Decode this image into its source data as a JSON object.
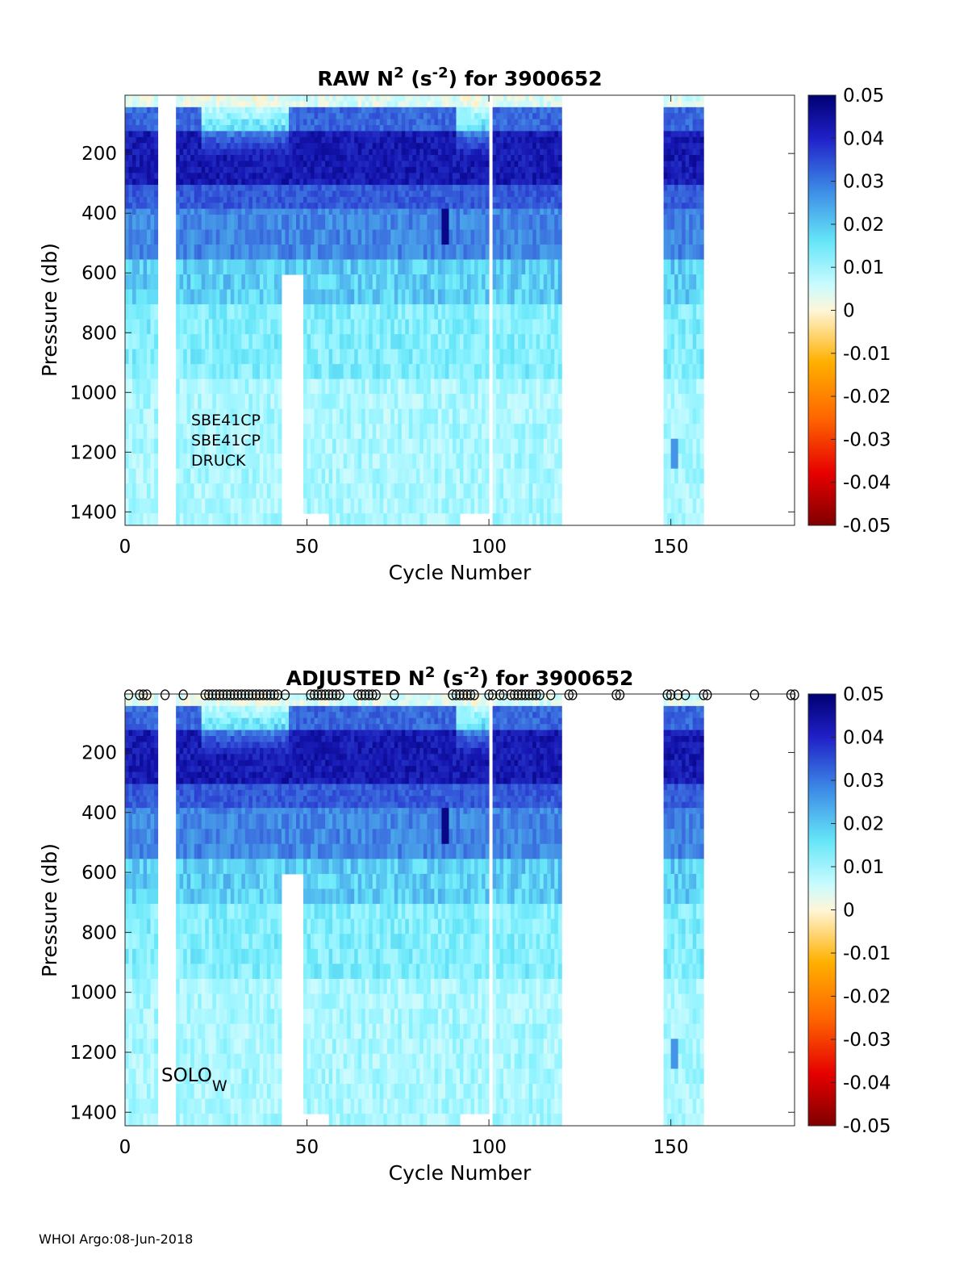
{
  "footer": "WHOI Argo:08-Jun-2018",
  "chart_data": [
    {
      "type": "heatmap",
      "id": "raw",
      "title": {
        "prefix": "RAW N",
        "sup1": "2",
        "mid": " (s",
        "sup2": "-2",
        "suffix": ") for 3900652"
      },
      "xlabel": "Cycle Number",
      "ylabel": "Pressure (db)",
      "xlim": [
        0,
        184
      ],
      "ylim": [
        1445,
        5
      ],
      "xticks": [
        0,
        50,
        100,
        150
      ],
      "yticks": [
        200,
        400,
        600,
        800,
        1000,
        1200,
        1400
      ],
      "colorbar": {
        "min": -0.05,
        "max": 0.05,
        "ticks": [
          "0.05",
          "0.04",
          "0.03",
          "0.02",
          "0.01",
          "0",
          "-0.01",
          "-0.02",
          "-0.03",
          "-0.04",
          "-0.05"
        ]
      },
      "annotations": [
        "SBE41CP",
        "SBE41CP",
        "DRUCK"
      ],
      "data_columns": [
        [
          0,
          9
        ],
        [
          14,
          43
        ],
        [
          43,
          49,
          600
        ],
        [
          49,
          56,
          1400
        ],
        [
          56,
          88
        ],
        [
          88,
          92
        ],
        [
          92,
          100,
          1400
        ],
        [
          101,
          111
        ],
        [
          111,
          120
        ],
        [
          148,
          159
        ]
      ],
      "qc_markers": [],
      "subscript_note": ""
    },
    {
      "type": "heatmap",
      "id": "adjusted",
      "title": {
        "prefix": "ADJUSTED N",
        "sup1": "2",
        "mid": " (s",
        "sup2": "-2",
        "suffix": ") for 3900652"
      },
      "xlabel": "Cycle Number",
      "ylabel": "Pressure (db)",
      "xlim": [
        0,
        184
      ],
      "ylim": [
        1445,
        5
      ],
      "xticks": [
        0,
        50,
        100,
        150
      ],
      "yticks": [
        200,
        400,
        600,
        800,
        1000,
        1200,
        1400
      ],
      "colorbar": {
        "min": -0.05,
        "max": 0.05,
        "ticks": [
          "0.05",
          "0.04",
          "0.03",
          "0.02",
          "0.01",
          "0",
          "-0.01",
          "-0.02",
          "-0.03",
          "-0.04",
          "-0.05"
        ]
      },
      "annotations": [
        "SOLO"
      ],
      "subscript_note": "W",
      "qc_markers": [
        1,
        4,
        5,
        6,
        11,
        16,
        22,
        23,
        24,
        25,
        26,
        27,
        28,
        29,
        30,
        31,
        32,
        33,
        34,
        35,
        36,
        37,
        38,
        39,
        40,
        41,
        42,
        44,
        51,
        52,
        53,
        54,
        55,
        56,
        57,
        58,
        59,
        64,
        65,
        66,
        67,
        68,
        69,
        74,
        90,
        91,
        92,
        93,
        94,
        95,
        96,
        100,
        101,
        103,
        104,
        106,
        107,
        108,
        109,
        110,
        111,
        112,
        113,
        114,
        117,
        122,
        123,
        135,
        136,
        149,
        150,
        152,
        154,
        159,
        160,
        173,
        183,
        184
      ],
      "data_columns": [
        [
          0,
          9
        ],
        [
          14,
          43
        ],
        [
          43,
          49,
          600
        ],
        [
          49,
          56,
          1400
        ],
        [
          56,
          88
        ],
        [
          88,
          92
        ],
        [
          92,
          100,
          1400
        ],
        [
          101,
          111
        ],
        [
          111,
          120
        ],
        [
          148,
          159
        ]
      ]
    }
  ]
}
